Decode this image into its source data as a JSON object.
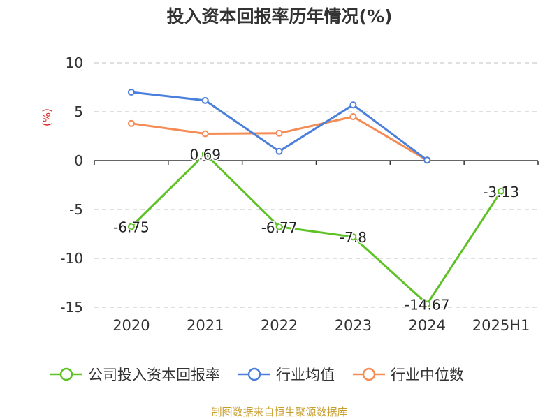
{
  "chart_data": {
    "type": "line",
    "title": "投入资本回报率历年情况(%)",
    "ylabel": "(%)",
    "xlabel": "",
    "categories": [
      "2020",
      "2021",
      "2022",
      "2023",
      "2024",
      "2025H1"
    ],
    "yticks": [
      10,
      5,
      0,
      -5,
      -10,
      -15
    ],
    "ylim": [
      -15,
      10
    ],
    "grid": "horizontal dashed",
    "legend_position": "bottom",
    "series": [
      {
        "name": "公司投入资本回报率",
        "color": "#5ec227",
        "values": [
          -6.75,
          0.69,
          -6.77,
          -7.8,
          -14.67,
          -3.13
        ],
        "labels": [
          "-6.75",
          "0.69",
          "-6.77",
          "-7.8",
          "-14.67",
          "-3.13"
        ]
      },
      {
        "name": "行业均值",
        "color": "#4a7fdc",
        "values": [
          7.0,
          6.15,
          0.95,
          5.7,
          0.05,
          null
        ]
      },
      {
        "name": "行业中位数",
        "color": "#f58b55",
        "values": [
          3.8,
          2.75,
          2.8,
          4.5,
          0.05,
          null
        ]
      }
    ],
    "source": "制图数据来自恒生聚源数据库"
  }
}
